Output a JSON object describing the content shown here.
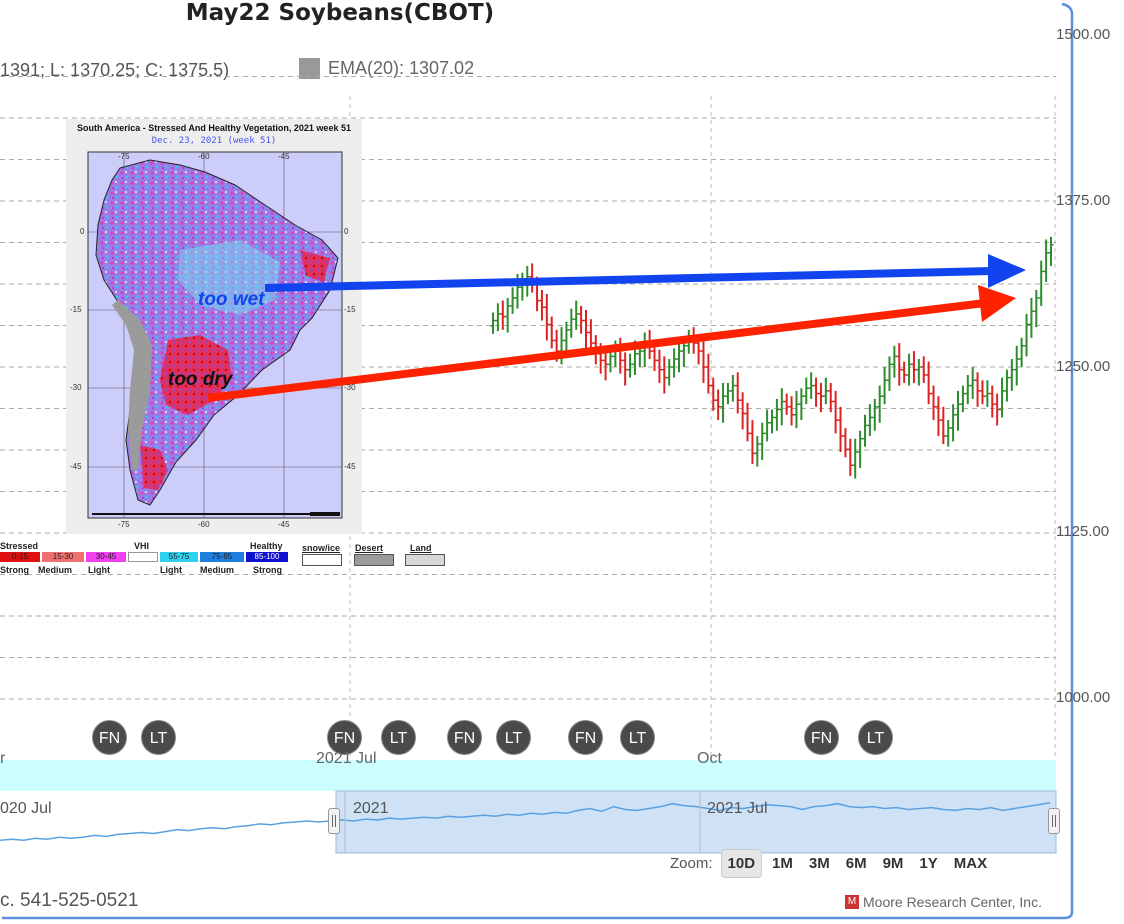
{
  "chart_title": "May22 Soybeans(CBOT)",
  "ohlc_readout": "1391; L: 1370.25; C: 1375.5)",
  "ema_readout": "EMA(20): 1307.02",
  "colors": {
    "up": "#2e8b2e",
    "down": "#d22",
    "blue_arrow": "#1144ee",
    "red_arrow": "#ff2200",
    "navigator_fill": "#cfe2f5",
    "navigator_line": "#5aa0e0",
    "scrollbar": "#ccfdff"
  },
  "y_axis": {
    "labels": [
      "1500.00",
      "1375.00",
      "1250.00",
      "1125.00",
      "1000.00"
    ]
  },
  "event_markers": [
    "FN",
    "LT",
    "FN",
    "LT",
    "FN",
    "LT",
    "FN",
    "LT",
    "FN",
    "LT"
  ],
  "x_axis_labels": [
    "r",
    "2021 Jul",
    "Oct"
  ],
  "navigator_labels": [
    "020 Jul",
    "2021",
    "2021 Jul"
  ],
  "zoom": {
    "label": "Zoom:",
    "buttons": [
      "10D",
      "1M",
      "3M",
      "6M",
      "9M",
      "1Y",
      "MAX"
    ],
    "active": "10D"
  },
  "footer": {
    "phone": "c. 541-525-0521",
    "credit": "Moore Research Center, Inc."
  },
  "inset": {
    "title": "South America - Stressed And Healthy Vegetation, 2021 week 51",
    "date": "Dec. 23, 2021 (week 51)",
    "lon_ticks": [
      "-75",
      "-60",
      "-45"
    ],
    "lat_ticks": [
      "0",
      "-15",
      "-30",
      "-45"
    ],
    "annot_wet": "too wet",
    "annot_dry": "too dry",
    "legend": {
      "stressed": "Stressed",
      "vhi": "VHI",
      "healthy": "Healthy",
      "scale": [
        "0-15",
        "15-30",
        "30-45",
        "55-75",
        "75-85",
        "85-100"
      ],
      "scale_colors": [
        "#e01010",
        "#f07070",
        "#f040f0",
        "#30d0f0",
        "#2080e0",
        "#1010d0"
      ],
      "strength": [
        "Strong",
        "Medium",
        "Light",
        "Light",
        "Medium",
        "Strong"
      ],
      "extras": [
        "snow/ice",
        "Desert",
        "Land"
      ]
    }
  },
  "chart_data": {
    "type": "bar",
    "ylim": [
      940,
      1500
    ],
    "y_ticks": [
      1000,
      1125,
      1250,
      1375,
      1500
    ],
    "x_ticks": [
      "2021 Jul",
      "Oct"
    ],
    "close_series": [
      1285,
      1290,
      1288,
      1296,
      1302,
      1310,
      1315,
      1318,
      1312,
      1300,
      1295,
      1282,
      1270,
      1262,
      1270,
      1278,
      1286,
      1290,
      1285,
      1276,
      1268,
      1260,
      1255,
      1252,
      1258,
      1262,
      1255,
      1248,
      1252,
      1260,
      1262,
      1268,
      1262,
      1255,
      1248,
      1242,
      1250,
      1256,
      1262,
      1266,
      1270,
      1268,
      1262,
      1250,
      1236,
      1225,
      1220,
      1228,
      1232,
      1236,
      1225,
      1215,
      1200,
      1185,
      1192,
      1200,
      1208,
      1212,
      1218,
      1224,
      1220,
      1214,
      1222,
      1228,
      1234,
      1236,
      1230,
      1228,
      1232,
      1224,
      1210,
      1198,
      1188,
      1176,
      1186,
      1196,
      1206,
      1212,
      1220,
      1228,
      1240,
      1252,
      1258,
      1248,
      1244,
      1252,
      1248,
      1250,
      1244,
      1230,
      1220,
      1210,
      1198,
      1204,
      1214,
      1222,
      1230,
      1236,
      1240,
      1232,
      1228,
      1230,
      1222,
      1218,
      1232,
      1242,
      1248,
      1256,
      1266,
      1282,
      1292,
      1302,
      1322,
      1336,
      1342
    ],
    "navigator_series": [
      0.55,
      0.56,
      0.55,
      0.57,
      0.56,
      0.58,
      0.57,
      0.58,
      0.6,
      0.59,
      0.61,
      0.62,
      0.63,
      0.62,
      0.64,
      0.66,
      0.65,
      0.67,
      0.68,
      0.67,
      0.69,
      0.7,
      0.72,
      0.71,
      0.73,
      0.74,
      0.75,
      0.74,
      0.75,
      0.76,
      0.75,
      0.77,
      0.76,
      0.78,
      0.77,
      0.78,
      0.79,
      0.78,
      0.8,
      0.79,
      0.8,
      0.81,
      0.8,
      0.82,
      0.81,
      0.83,
      0.82,
      0.84,
      0.83,
      0.86,
      0.88,
      0.85,
      0.9,
      0.87,
      0.86,
      0.88,
      0.9,
      0.93,
      0.91,
      0.9,
      0.88,
      0.86,
      0.89,
      0.88,
      0.9,
      0.92,
      0.91,
      0.9,
      0.87,
      0.9,
      0.91,
      0.93,
      0.9,
      0.89,
      0.9,
      0.88,
      0.89,
      0.87,
      0.88,
      0.89,
      0.87,
      0.86,
      0.88,
      0.87,
      0.89,
      0.86,
      0.88,
      0.9,
      0.92,
      0.94
    ]
  }
}
